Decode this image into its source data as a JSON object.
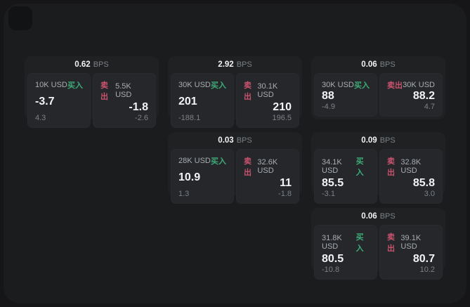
{
  "colors": {
    "page_bg": "#161618",
    "surface_bg": "#1b1c1e",
    "card_bg": "#1f2123",
    "panel_bg": "#25272a",
    "text_primary": "#f2f3f4",
    "text_secondary": "#a9adb1",
    "text_muted": "#7d8186",
    "buy_color": "#3eac78",
    "sell_color": "#c9536e"
  },
  "cards": [
    {
      "bps_value": "0.62",
      "bps_unit": "BPS",
      "buy": {
        "amount": "10K USD",
        "side_label": "买入",
        "price": "-3.7",
        "change": "4.3"
      },
      "sell": {
        "amount": "5.5K USD",
        "side_label": "卖出",
        "price": "-1.8",
        "change": "-2.6"
      }
    },
    {
      "bps_value": "2.92",
      "bps_unit": "BPS",
      "buy": {
        "amount": "30K USD",
        "side_label": "买入",
        "price": "201",
        "change": "-188.1"
      },
      "sell": {
        "amount": "30.1K USD",
        "side_label": "卖出",
        "price": "210",
        "change": "196.5"
      }
    },
    {
      "bps_value": "0.06",
      "bps_unit": "BPS",
      "buy": {
        "amount": "30K USD",
        "side_label": "买入",
        "price": "88",
        "change": "-4.9"
      },
      "sell": {
        "amount": "30K USD",
        "side_label": "卖出",
        "price": "88.2",
        "change": "4.7"
      }
    },
    {
      "bps_value": "0.03",
      "bps_unit": "BPS",
      "buy": {
        "amount": "28K USD",
        "side_label": "买入",
        "price": "10.9",
        "change": "1.3"
      },
      "sell": {
        "amount": "32.6K USD",
        "side_label": "卖出",
        "price": "11",
        "change": "-1.8"
      }
    },
    {
      "bps_value": "0.09",
      "bps_unit": "BPS",
      "buy": {
        "amount": "34.1K USD",
        "side_label": "买入",
        "price": "85.5",
        "change": "-3.1"
      },
      "sell": {
        "amount": "32.8K USD",
        "side_label": "卖出",
        "price": "85.8",
        "change": "3.0"
      }
    },
    {
      "bps_value": "0.06",
      "bps_unit": "BPS",
      "buy": {
        "amount": "31.8K USD",
        "side_label": "买入",
        "price": "80.5",
        "change": "-10.8"
      },
      "sell": {
        "amount": "39.1K USD",
        "side_label": "卖出",
        "price": "80.7",
        "change": "10.2"
      }
    }
  ]
}
